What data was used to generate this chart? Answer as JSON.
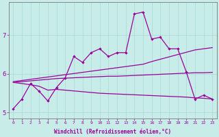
{
  "xlabel": "Windchill (Refroidissement éolien,°C)",
  "bg_color": "#c8ece8",
  "grid_color": "#a8d8d4",
  "line_color": "#990099",
  "x": [
    0,
    1,
    2,
    3,
    4,
    5,
    6,
    7,
    8,
    9,
    10,
    11,
    12,
    13,
    14,
    15,
    16,
    17,
    18,
    19,
    20,
    21,
    22,
    23
  ],
  "line_zigzag": [
    5.1,
    5.35,
    5.75,
    5.55,
    5.3,
    5.65,
    5.9,
    6.45,
    6.3,
    6.55,
    6.65,
    6.45,
    6.55,
    6.55,
    7.55,
    7.6,
    6.9,
    6.95,
    6.65,
    6.65,
    6.05,
    5.35,
    5.45,
    5.35
  ],
  "line_upper_straight": [
    5.8,
    5.83,
    5.86,
    5.89,
    5.92,
    5.95,
    5.98,
    6.01,
    6.04,
    6.07,
    6.1,
    6.13,
    6.16,
    6.19,
    6.22,
    6.25,
    6.32,
    6.38,
    6.44,
    6.5,
    6.56,
    6.62,
    6.65,
    6.68
  ],
  "line_middle_flat": [
    5.78,
    5.8,
    5.82,
    5.84,
    5.86,
    5.88,
    5.89,
    5.9,
    5.91,
    5.92,
    5.93,
    5.94,
    5.94,
    5.95,
    5.96,
    5.97,
    5.98,
    5.99,
    6.0,
    6.01,
    6.02,
    6.03,
    6.03,
    6.04
  ],
  "line_bottom": [
    5.78,
    5.75,
    5.72,
    5.68,
    5.58,
    5.6,
    5.58,
    5.56,
    5.54,
    5.52,
    5.5,
    5.49,
    5.48,
    5.47,
    5.46,
    5.45,
    5.44,
    5.43,
    5.42,
    5.41,
    5.4,
    5.38,
    5.37,
    5.35
  ],
  "ylim": [
    4.85,
    7.85
  ],
  "xlim": [
    -0.5,
    23.5
  ],
  "yticks": [
    5,
    6,
    7
  ],
  "xtick_fontsize": 4.5,
  "ytick_fontsize": 6.5,
  "xlabel_fontsize": 5.5
}
